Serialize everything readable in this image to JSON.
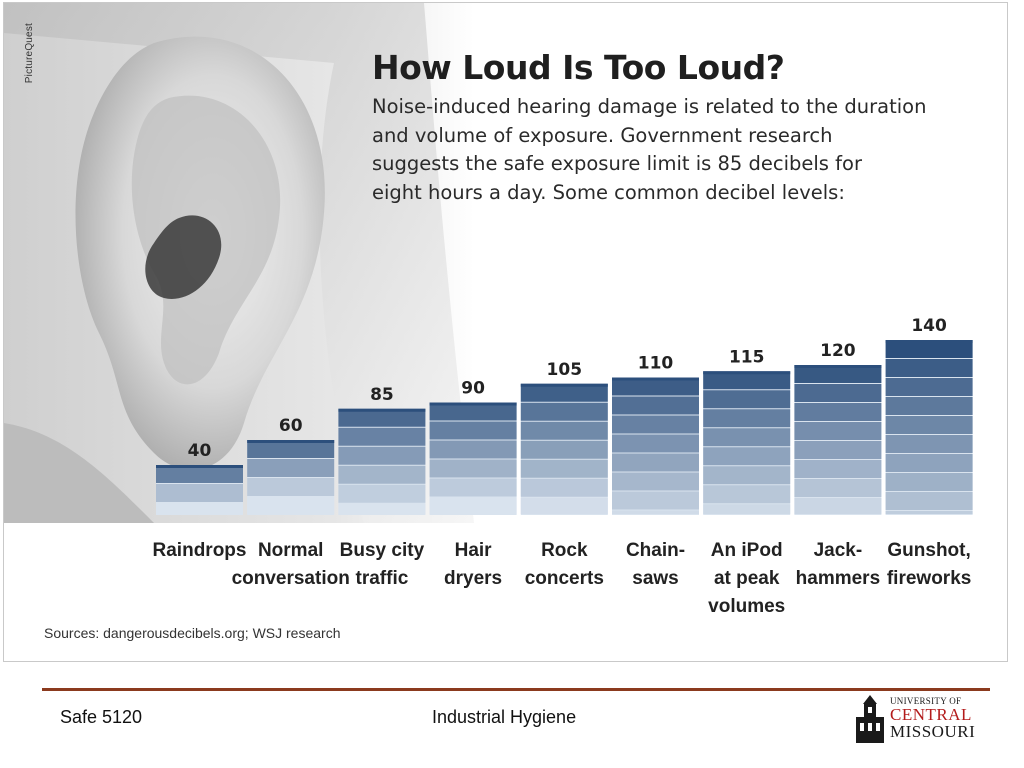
{
  "photo_credit": "PictureQuest",
  "footer": {
    "course": "Safe 5120",
    "subject": "Industrial Hygiene",
    "logo": {
      "line1": "UNIVERSITY OF",
      "line2": "CENTRAL",
      "line3": "MISSOURI"
    }
  },
  "colors": {
    "bar_dark": "#2c4f7c",
    "bar_light": "#d9e3ee",
    "footer_rule": "#8b3a1e",
    "logo_red": "#b31b1b"
  },
  "chart_data": {
    "type": "bar",
    "title": "How Loud Is Too Loud?",
    "subtitle_lines": [
      "Noise-induced hearing damage is related to the duration",
      "and volume of exposure. Government research",
      "suggests the safe exposure limit is 85 decibels for",
      "eight hours a day. Some common decibel levels:"
    ],
    "categories": [
      [
        "Raindrops"
      ],
      [
        "Normal",
        "conversation"
      ],
      [
        "Busy city",
        "traffic"
      ],
      [
        "Hair",
        "dryers"
      ],
      [
        "Rock",
        "concerts"
      ],
      [
        "Chain-",
        "saws"
      ],
      [
        "An iPod",
        "at peak",
        "volumes"
      ],
      [
        "Jack-",
        "hammers"
      ],
      [
        "Gunshot,",
        "fireworks"
      ]
    ],
    "values": [
      40,
      60,
      85,
      90,
      105,
      110,
      115,
      120,
      140
    ],
    "source": "Sources: dangerousdecibels.org; WSJ research",
    "grid": false,
    "legend": "none"
  }
}
